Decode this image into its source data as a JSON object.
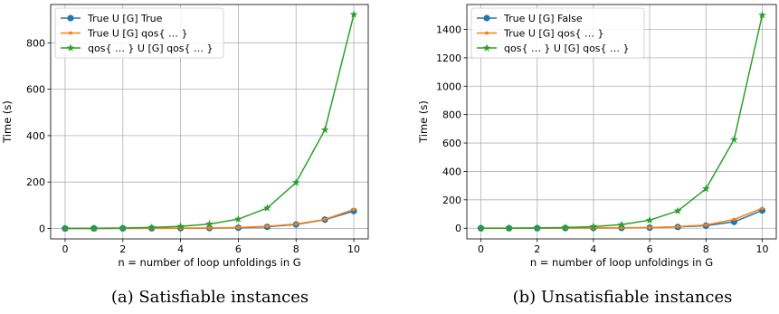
{
  "chart_data": [
    {
      "type": "line",
      "caption": "(a) Satisfiable instances",
      "xlabel": "n = number of loop unfoldings in G",
      "ylabel": "Time (s)",
      "xlim": [
        -0.5,
        10.5
      ],
      "ylim": [
        -45,
        965
      ],
      "xticks": [
        0,
        2,
        4,
        6,
        8,
        10
      ],
      "yticks": [
        0,
        200,
        400,
        600,
        800
      ],
      "grid": true,
      "legend_position": "top-left",
      "x": [
        0,
        1,
        2,
        3,
        4,
        5,
        6,
        7,
        8,
        9,
        10
      ],
      "series": [
        {
          "name": "True U [G] True",
          "color": "#1f77b4",
          "marker": "circle",
          "values": [
            0,
            0,
            0.5,
            0.5,
            1,
            1.5,
            3,
            7,
            17,
            38,
            75
          ]
        },
        {
          "name": "True U [G] qos{ … }",
          "color": "#ff7f0e",
          "marker": "point",
          "values": [
            0,
            0,
            0.5,
            1,
            1.5,
            2,
            4,
            9,
            19,
            39,
            82
          ]
        },
        {
          "name": "qos{ … } U [G] qos{ … }",
          "color": "#2ca02c",
          "marker": "star",
          "values": [
            0.5,
            1,
            2,
            4,
            9,
            19,
            40,
            88,
            198,
            425,
            922
          ]
        }
      ]
    },
    {
      "type": "line",
      "caption": "(b) Unsatisfiable instances",
      "xlabel": "n = number of loop unfoldings in G",
      "ylabel": "Time (s)",
      "xlim": [
        -0.5,
        10.5
      ],
      "ylim": [
        -75,
        1575
      ],
      "xticks": [
        0,
        2,
        4,
        6,
        8,
        10
      ],
      "yticks": [
        0,
        200,
        400,
        600,
        800,
        1000,
        1200,
        1400
      ],
      "grid": true,
      "legend_position": "top-left",
      "x": [
        0,
        1,
        2,
        3,
        4,
        5,
        6,
        7,
        8,
        9,
        10
      ],
      "series": [
        {
          "name": "True U [G] False",
          "color": "#1f77b4",
          "marker": "circle",
          "values": [
            0,
            0,
            0.5,
            1,
            1.5,
            2,
            4,
            9,
            18,
            45,
            125
          ]
        },
        {
          "name": "True U [G] qos{ … }",
          "color": "#ff7f0e",
          "marker": "point",
          "values": [
            0,
            0,
            0.5,
            1,
            2,
            3,
            5,
            11,
            23,
            62,
            140
          ]
        },
        {
          "name": "qos{ … } U [G] qos{ … }",
          "color": "#2ca02c",
          "marker": "star",
          "values": [
            0.5,
            1,
            2,
            5,
            12,
            25,
            57,
            122,
            278,
            625,
            1500
          ]
        }
      ]
    }
  ]
}
